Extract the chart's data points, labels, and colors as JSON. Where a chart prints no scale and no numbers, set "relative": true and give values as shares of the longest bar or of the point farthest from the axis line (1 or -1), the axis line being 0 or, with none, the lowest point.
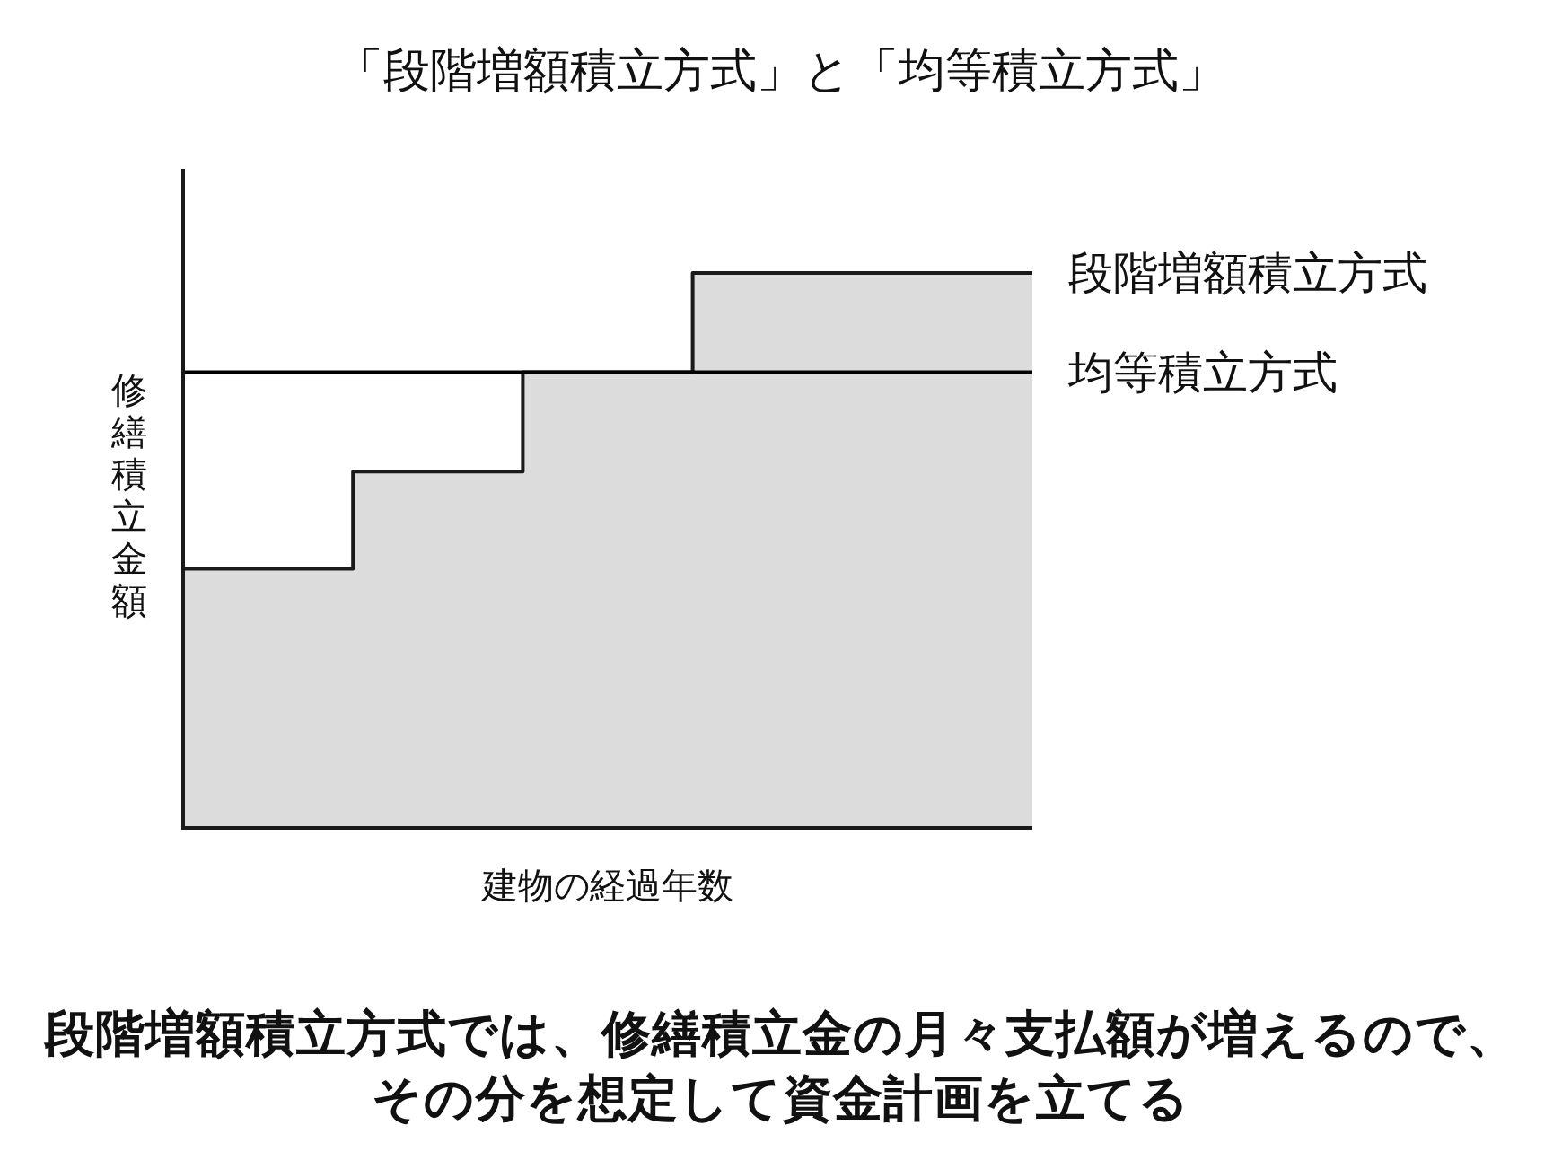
{
  "chart_data": {
    "type": "step",
    "title": "「段階増額積立方式」と「均等積立方式」",
    "xlabel": "建物の経過年数",
    "ylabel": "修繕積立金額",
    "annotations": [
      "段階増額積立方式では、修繕積立金の月々支払額が増えるので、その分を想定して資金計画を立てる"
    ],
    "relative": true,
    "categories": [
      null,
      null,
      null,
      null,
      null,
      null
    ],
    "series": [
      {
        "name": "段階増額積立方式",
        "type": "area",
        "color": "#dcdcdc",
        "values": [
          0.467,
          0.642,
          0.821,
          1,
          1,
          1
        ]
      },
      {
        "name": "均等積立方式",
        "type": "line",
        "color": "#000000",
        "values": [
          0.821,
          0.821,
          0.821,
          0.821,
          0.821,
          0.821
        ]
      }
    ]
  }
}
